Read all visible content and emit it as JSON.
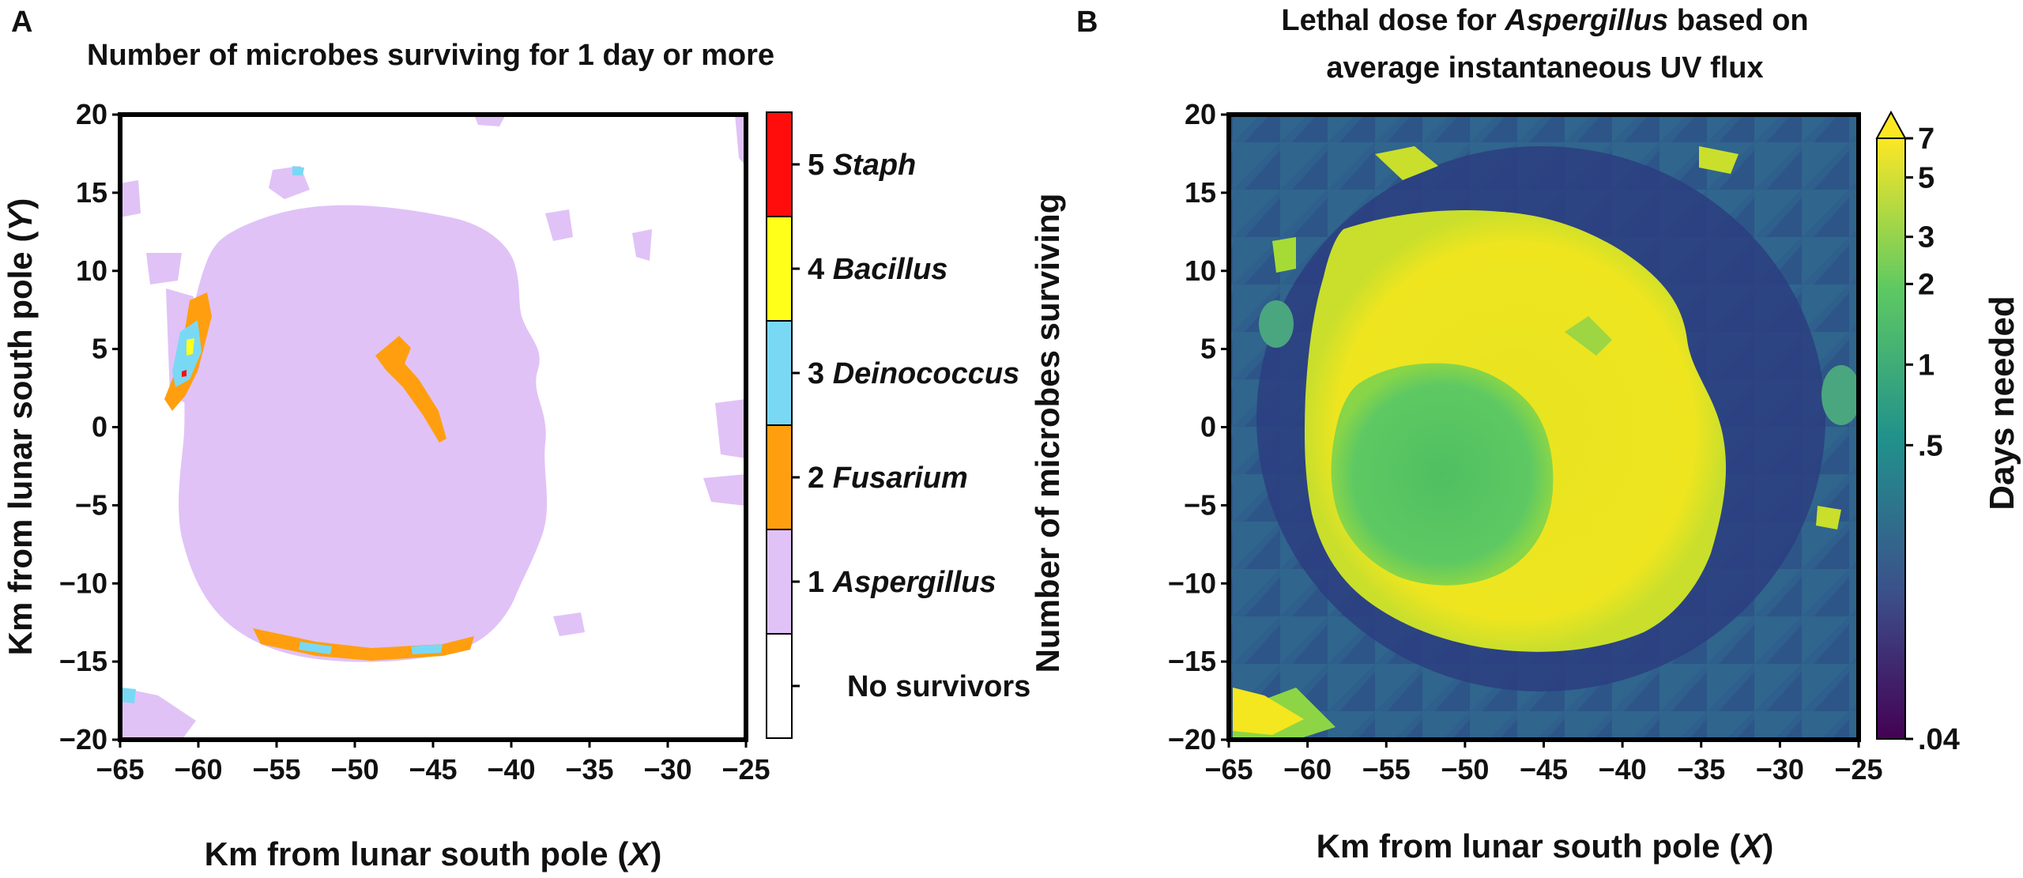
{
  "panels": [
    {
      "panel_letter": "A",
      "title_lines": [
        "Number of microbes surviving for 1 day or more"
      ],
      "xlabel_text": "Km from lunar south pole (",
      "xlabel_var": "X",
      "xlabel_close": ")",
      "ylabel_text": "Km from lunar south pole (",
      "ylabel_var": "Y",
      "ylabel_close": ")",
      "colorbar_label": "Number of microbes surviving",
      "x_ticks": [
        "−65",
        "−60",
        "−55",
        "−50",
        "−45",
        "−40",
        "−35",
        "−30",
        "−25"
      ],
      "y_ticks": [
        "20",
        "15",
        "10",
        "5",
        "0",
        "−5",
        "−10",
        "−15",
        "−20"
      ],
      "legend": [
        {
          "num": "5",
          "name": "Staph",
          "color": "#ff0d0d"
        },
        {
          "num": "4",
          "name": "Bacillus",
          "color": "#ffff1a"
        },
        {
          "num": "3",
          "name": "Deinococcus",
          "color": "#79d9f5"
        },
        {
          "num": "2",
          "name": "Fusarium",
          "color": "#ff9f0f"
        },
        {
          "num": "1",
          "name": "Aspergillus",
          "color": "#e0c2f7"
        },
        {
          "num": "",
          "name": "No survivors",
          "color": "#ffffff"
        }
      ]
    },
    {
      "panel_letter": "B",
      "title_lines": [
        "Lethal dose for ",
        "Aspergillus",
        " based on",
        "average instantaneous UV flux"
      ],
      "xlabel_text": "Km from lunar south pole (",
      "xlabel_var": "X",
      "xlabel_close": ")",
      "x_ticks": [
        "−65",
        "−60",
        "−55",
        "−50",
        "−45",
        "−40",
        "−35",
        "−30",
        "−25"
      ],
      "y_ticks": [
        "20",
        "15",
        "10",
        "5",
        "0",
        "−5",
        "−10",
        "−15",
        "−20"
      ],
      "colorbar_label": "Days needed",
      "colorbar_ticks": [
        "7",
        "5",
        "3",
        "2",
        "1",
        ".5",
        ".04"
      ],
      "colormap": [
        "#440154",
        "#3b528b",
        "#21918c",
        "#5ec962",
        "#fde725"
      ]
    }
  ],
  "chart_data": [
    {
      "type": "heatmap",
      "title": "Number of microbes surviving for 1 day or more",
      "xlabel": "Km from lunar south pole (X)",
      "ylabel": "Km from lunar south pole (Y)",
      "xlim": [
        -65,
        -25
      ],
      "ylim": [
        -20,
        20
      ],
      "color_categories": [
        {
          "value": 0,
          "label": "No survivors"
        },
        {
          "value": 1,
          "label": "Aspergillus"
        },
        {
          "value": 2,
          "label": "Fusarium"
        },
        {
          "value": 3,
          "label": "Deinococcus"
        },
        {
          "value": 4,
          "label": "Bacillus"
        },
        {
          "value": 5,
          "label": "Staph"
        }
      ],
      "regions": [
        {
          "description_value": 1,
          "center": [
            -49.5,
            -1.5
          ],
          "radius_x": 14.5,
          "radius_y": 12.5
        },
        {
          "description_value": 2,
          "points": [
            [
              -46.5,
              4.5
            ],
            [
              -44.5,
              0.5
            ],
            [
              -59.5,
              6.5
            ],
            [
              -58.5,
              8.5
            ]
          ]
        }
      ]
    },
    {
      "type": "heatmap",
      "title": "Lethal dose for Aspergillus based on average instantaneous UV flux",
      "xlabel": "Km from lunar south pole (X)",
      "ylabel": "",
      "xlim": [
        -65,
        -25
      ],
      "ylim": [
        -20,
        20
      ],
      "color_scale": "log",
      "color_range": [
        0.04,
        7
      ],
      "colorbar_label": "Days needed",
      "colorbar_ticks": [
        7,
        5,
        3,
        2,
        1,
        0.5,
        0.04
      ],
      "regions": [
        {
          "level": "high (~7 days)",
          "center": [
            -49.5,
            -1.5
          ],
          "radius_x": 14.5,
          "radius_y": 12.5
        },
        {
          "level": "~2 days",
          "center": [
            -52.5,
            -2.5
          ],
          "radius_x": 8.5,
          "radius_y": 8.0
        },
        {
          "level": "low (~0.1 days)",
          "area": "surrounding terrain"
        }
      ]
    }
  ]
}
